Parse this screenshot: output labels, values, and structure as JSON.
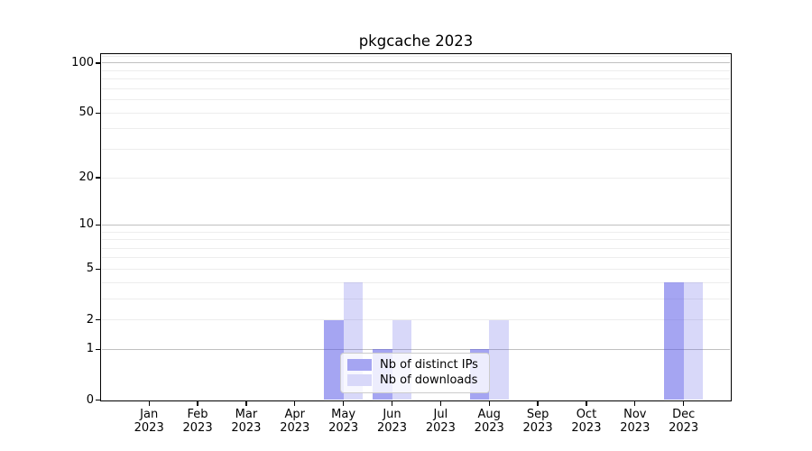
{
  "title": "pkgcache 2023",
  "chart_data": {
    "type": "bar",
    "title": "pkgcache 2023",
    "x_months": [
      "Jan",
      "Feb",
      "Mar",
      "Apr",
      "May",
      "Jun",
      "Jul",
      "Aug",
      "Sep",
      "Oct",
      "Nov",
      "Dec"
    ],
    "x_year": "2023",
    "series": [
      {
        "name": "Nb of distinct IPs",
        "color": "#5555e6",
        "alpha": 0.53,
        "values": [
          0,
          0,
          0,
          0,
          2,
          1,
          0,
          1,
          0,
          0,
          0,
          4
        ]
      },
      {
        "name": "Nb of downloads",
        "color": "#5555e6",
        "alpha": 0.23,
        "values": [
          0,
          0,
          0,
          0,
          4,
          2,
          0,
          2,
          0,
          0,
          0,
          4
        ]
      }
    ],
    "yscale": "log1p",
    "yticks": [
      0,
      1,
      2,
      5,
      10,
      20,
      50,
      100
    ],
    "ylim": [
      0,
      112.5
    ],
    "xlabel": "",
    "ylabel": "",
    "grid": {
      "on": true,
      "major_values": [
        1,
        10,
        100
      ],
      "minor_values": [
        2,
        3,
        4,
        5,
        6,
        7,
        8,
        9,
        20,
        30,
        40,
        50,
        60,
        70,
        80,
        90,
        110
      ],
      "major_color": "#c0c0c0",
      "minor_color": "#ededed"
    },
    "legend_position": "inside-lower-center"
  }
}
